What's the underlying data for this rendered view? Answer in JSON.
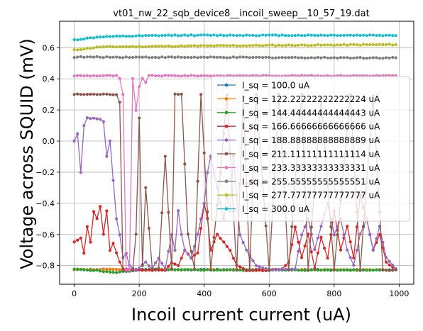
{
  "chart_data": {
    "type": "line",
    "title": "vt01_nw_22_sqb_device8__incoil_sweep__10_57_19.dat",
    "xlabel": "Incoil current current (uA)",
    "ylabel": "Voltage across SQUID (mV)",
    "xlim": [
      -45,
      1045
    ],
    "ylim": [
      -0.92,
      0.77
    ],
    "xticks": [
      0,
      200,
      400,
      600,
      800,
      1000
    ],
    "yticks": [
      -0.8,
      -0.6,
      -0.4,
      -0.2,
      0.0,
      0.2,
      0.4,
      0.6
    ],
    "ytick_labels": [
      "−0.8",
      "−0.6",
      "−0.4",
      "−0.2",
      "0.0",
      "0.2",
      "0.4",
      "0.6"
    ],
    "grid": true,
    "legend_position": "right",
    "series": [
      {
        "name": "I_sq = 100.0 uA",
        "color": "#1f77b4",
        "keypoints": [
          [
            0,
            -0.825
          ],
          [
            990,
            -0.828
          ]
        ]
      },
      {
        "name": "I_sq = 122.22222222222224 uA",
        "color": "#ff7f0e",
        "keypoints": [
          [
            0,
            -0.825
          ],
          [
            990,
            -0.828
          ]
        ]
      },
      {
        "name": "I_sq = 144.44444444444443 uA",
        "color": "#2ca02c",
        "keypoints": [
          [
            0,
            -0.825
          ],
          [
            60,
            -0.83
          ],
          [
            120,
            -0.845
          ],
          [
            160,
            -0.838
          ],
          [
            200,
            -0.828
          ],
          [
            400,
            -0.828
          ],
          [
            600,
            -0.83
          ],
          [
            990,
            -0.828
          ]
        ]
      },
      {
        "name": "I_sq = 166.66666666666666 uA",
        "color": "#d62728",
        "keypoints": [
          [
            0,
            -0.65
          ],
          [
            20,
            -0.62
          ],
          [
            30,
            -0.72
          ],
          [
            40,
            -0.55
          ],
          [
            50,
            -0.65
          ],
          [
            60,
            -0.45
          ],
          [
            70,
            -0.5
          ],
          [
            80,
            -0.42
          ],
          [
            90,
            -0.6
          ],
          [
            100,
            -0.45
          ],
          [
            110,
            -0.7
          ],
          [
            120,
            -0.66
          ],
          [
            130,
            -0.72
          ],
          [
            140,
            -0.78
          ],
          [
            150,
            -0.82
          ],
          [
            200,
            -0.83
          ],
          [
            280,
            -0.83
          ],
          [
            300,
            -0.78
          ],
          [
            320,
            -0.8
          ],
          [
            340,
            -0.7
          ],
          [
            360,
            -0.75
          ],
          [
            380,
            -0.72
          ],
          [
            400,
            -0.4
          ],
          [
            410,
            -0.5
          ],
          [
            420,
            -0.7
          ],
          [
            440,
            -0.6
          ],
          [
            460,
            -0.65
          ],
          [
            480,
            -0.7
          ],
          [
            500,
            -0.8
          ],
          [
            530,
            -0.83
          ],
          [
            600,
            -0.83
          ],
          [
            640,
            -0.82
          ],
          [
            660,
            -0.78
          ],
          [
            680,
            -0.55
          ],
          [
            700,
            -0.75
          ],
          [
            720,
            -0.6
          ],
          [
            740,
            -0.82
          ],
          [
            760,
            -0.62
          ],
          [
            780,
            -0.75
          ],
          [
            800,
            -0.45
          ],
          [
            820,
            -0.7
          ],
          [
            840,
            -0.55
          ],
          [
            860,
            -0.75
          ],
          [
            880,
            -0.35
          ],
          [
            900,
            -0.5
          ],
          [
            920,
            -0.7
          ],
          [
            940,
            -0.6
          ],
          [
            960,
            -0.78
          ],
          [
            990,
            -0.82
          ]
        ]
      },
      {
        "name": "I_sq = 188.88888888888889 uA",
        "color": "#9467bd",
        "keypoints": [
          [
            0,
            0.0
          ],
          [
            10,
            0.05
          ],
          [
            20,
            -0.2
          ],
          [
            30,
            0.1
          ],
          [
            40,
            0.15
          ],
          [
            80,
            0.14
          ],
          [
            95,
            0.12
          ],
          [
            100,
            -0.1
          ],
          [
            110,
            0.0
          ],
          [
            120,
            -0.25
          ],
          [
            130,
            -0.5
          ],
          [
            140,
            -0.6
          ],
          [
            150,
            -0.75
          ],
          [
            160,
            -0.72
          ],
          [
            170,
            -0.8
          ],
          [
            190,
            -0.83
          ],
          [
            220,
            -0.78
          ],
          [
            240,
            -0.82
          ],
          [
            260,
            -0.75
          ],
          [
            280,
            -0.82
          ],
          [
            300,
            -0.6
          ],
          [
            310,
            -0.7
          ],
          [
            320,
            -0.45
          ],
          [
            330,
            -0.6
          ],
          [
            340,
            -0.7
          ],
          [
            360,
            -0.75
          ],
          [
            380,
            -0.6
          ],
          [
            390,
            -0.5
          ],
          [
            400,
            -0.4
          ],
          [
            410,
            -0.2
          ],
          [
            420,
            -0.1
          ],
          [
            440,
            -0.3
          ],
          [
            460,
            -0.5
          ],
          [
            470,
            -0.35
          ],
          [
            480,
            -0.45
          ],
          [
            490,
            -0.1
          ],
          [
            510,
            -0.6
          ],
          [
            530,
            -0.7
          ],
          [
            560,
            -0.8
          ],
          [
            600,
            -0.83
          ],
          [
            680,
            -0.82
          ],
          [
            700,
            -0.6
          ],
          [
            720,
            -0.5
          ],
          [
            740,
            -0.7
          ],
          [
            760,
            -0.55
          ],
          [
            780,
            -0.4
          ],
          [
            800,
            -0.6
          ],
          [
            820,
            -0.5
          ],
          [
            840,
            -0.7
          ],
          [
            860,
            -0.8
          ],
          [
            880,
            -0.6
          ],
          [
            900,
            -0.5
          ],
          [
            920,
            -0.7
          ],
          [
            940,
            -0.55
          ],
          [
            960,
            -0.75
          ],
          [
            990,
            -0.82
          ]
        ]
      },
      {
        "name": "I_sq = 211.11111111111114 uA",
        "color": "#8c564b",
        "keypoints": [
          [
            0,
            0.3
          ],
          [
            60,
            0.3
          ],
          [
            130,
            0.3
          ],
          [
            140,
            0.25
          ],
          [
            150,
            -0.83
          ],
          [
            180,
            -0.83
          ],
          [
            185,
            0.25
          ],
          [
            190,
            -0.6
          ],
          [
            200,
            0.15
          ],
          [
            210,
            -0.8
          ],
          [
            220,
            -0.3
          ],
          [
            240,
            -0.82
          ],
          [
            260,
            -0.82
          ],
          [
            280,
            -0.1
          ],
          [
            300,
            -0.82
          ],
          [
            310,
            0.3
          ],
          [
            330,
            0.3
          ],
          [
            350,
            -0.6
          ],
          [
            370,
            -0.82
          ],
          [
            390,
            0.3
          ],
          [
            420,
            -0.83
          ],
          [
            450,
            -0.2
          ],
          [
            470,
            0.3
          ],
          [
            500,
            -0.83
          ],
          [
            520,
            0.28
          ],
          [
            540,
            -0.83
          ],
          [
            560,
            0.3
          ],
          [
            600,
            -0.83
          ],
          [
            630,
            0.3
          ],
          [
            660,
            -0.83
          ],
          [
            700,
            0.3
          ],
          [
            720,
            -0.83
          ],
          [
            760,
            0.28
          ],
          [
            800,
            -0.83
          ],
          [
            850,
            0.3
          ],
          [
            880,
            -0.83
          ],
          [
            920,
            0.29
          ],
          [
            950,
            -0.83
          ],
          [
            990,
            -0.83
          ]
        ]
      },
      {
        "name": "I_sq = 233.33333333333331 uA",
        "color": "#e377c2",
        "keypoints": [
          [
            0,
            0.42
          ],
          [
            40,
            0.42
          ],
          [
            100,
            0.42
          ],
          [
            130,
            0.42
          ],
          [
            140,
            0.4
          ],
          [
            150,
            0.3
          ],
          [
            160,
            -0.83
          ],
          [
            165,
            0.3
          ],
          [
            170,
            -0.83
          ],
          [
            180,
            0.4
          ],
          [
            190,
            0.2
          ],
          [
            200,
            0.35
          ],
          [
            210,
            0.4
          ],
          [
            220,
            0.38
          ],
          [
            230,
            0.42
          ],
          [
            300,
            0.42
          ],
          [
            500,
            0.42
          ],
          [
            700,
            0.42
          ],
          [
            990,
            0.42
          ]
        ]
      },
      {
        "name": "I_sq = 255.55555555555551 uA",
        "color": "#7f7f7f",
        "keypoints": [
          [
            0,
            0.54
          ],
          [
            990,
            0.535
          ]
        ]
      },
      {
        "name": "I_sq = 277.77777777777777 uA",
        "color": "#bcbd22",
        "keypoints": [
          [
            0,
            0.585
          ],
          [
            80,
            0.605
          ],
          [
            300,
            0.61
          ],
          [
            600,
            0.615
          ],
          [
            990,
            0.62
          ]
        ]
      },
      {
        "name": "I_sq = 300.0 uA",
        "color": "#17becf",
        "keypoints": [
          [
            0,
            0.65
          ],
          [
            80,
            0.67
          ],
          [
            300,
            0.68
          ],
          [
            600,
            0.68
          ],
          [
            990,
            0.68
          ]
        ]
      }
    ]
  }
}
